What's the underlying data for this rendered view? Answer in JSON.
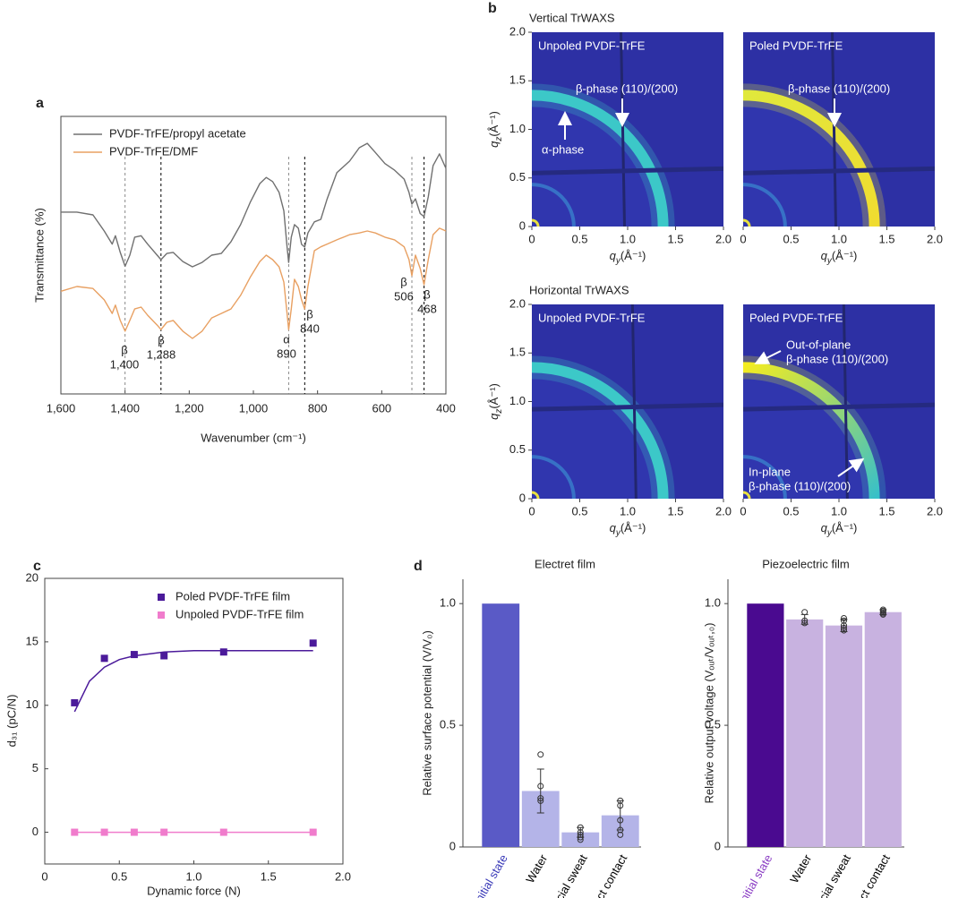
{
  "panel_labels": [
    "a",
    "b",
    "c",
    "d"
  ],
  "chart_data": [
    {
      "type": "line",
      "xlabel": "Wavenumber (cm⁻¹)",
      "ylabel": "Transmittance (%)",
      "xlim": [
        1600,
        400
      ],
      "ylim": [
        0,
        100
      ],
      "xticks": [
        {
          "value": 1600,
          "label": "1,600"
        },
        {
          "value": 1400,
          "label": "1,400"
        },
        {
          "value": 1200,
          "label": "1,200"
        },
        {
          "value": 1000,
          "label": "1,000"
        },
        800,
        600,
        400
      ],
      "legend": "upper left",
      "x": [
        1600,
        1550,
        1500,
        1465,
        1440,
        1430,
        1415,
        1400,
        1385,
        1370,
        1350,
        1330,
        1300,
        1288,
        1270,
        1250,
        1220,
        1190,
        1160,
        1130,
        1100,
        1070,
        1040,
        1010,
        980,
        960,
        940,
        920,
        905,
        895,
        890,
        882,
        872,
        860,
        850,
        840,
        830,
        810,
        790,
        770,
        740,
        700,
        670,
        645,
        620,
        590,
        560,
        530,
        515,
        506,
        495,
        480,
        468,
        455,
        440,
        420,
        400
      ],
      "series": [
        {
          "name": "PVDF-TrFE/propyl acetate",
          "color": "#707070",
          "values": [
            65.5,
            65.5,
            64.5,
            58.7,
            54,
            57,
            51,
            46,
            50,
            56.5,
            57,
            54,
            50,
            48.4,
            50.6,
            51,
            47.7,
            45.8,
            47.4,
            50,
            50.6,
            54.8,
            61,
            69,
            75.8,
            78,
            76.5,
            72.6,
            66,
            53,
            47.4,
            56.5,
            61,
            59.7,
            53.9,
            52.9,
            58,
            62,
            62.9,
            70.3,
            79.7,
            83.9,
            88.7,
            90.3,
            87,
            83,
            80.6,
            77.4,
            72.6,
            68.4,
            70.3,
            65,
            63.9,
            71,
            82.3,
            86.5,
            81.3
          ]
        },
        {
          "name": "PVDF-TrFE/DMF",
          "color": "#e8a062",
          "values": [
            37,
            38.7,
            38,
            33.9,
            29,
            32,
            26.5,
            22.6,
            26.5,
            30.6,
            31.3,
            28.4,
            24.8,
            23.2,
            25.8,
            26.5,
            22.6,
            20,
            22.6,
            27.4,
            29,
            30.6,
            35.5,
            42,
            47.7,
            50,
            48.4,
            45.8,
            40.3,
            29,
            23.2,
            30.6,
            41.3,
            38.7,
            33.9,
            30.6,
            38.7,
            51.6,
            53,
            54,
            55.5,
            57.4,
            58,
            58.7,
            58,
            56.5,
            55.5,
            53,
            48.4,
            42.6,
            50,
            45.2,
            39.4,
            48.4,
            57.4,
            59.7,
            58.7
          ]
        }
      ],
      "annotations": [
        {
          "x": 1400,
          "symbol": "β",
          "label": "1,400",
          "color": "#888888"
        },
        {
          "x": 1288,
          "symbol": "β",
          "label": "1,288",
          "color": "#000000"
        },
        {
          "x": 890,
          "symbol": "α",
          "label": "890",
          "color": "#888888"
        },
        {
          "x": 840,
          "symbol": "β",
          "label": "840",
          "color": "#000000"
        },
        {
          "x": 506,
          "symbol": "β",
          "label": "506",
          "color": "#888888"
        },
        {
          "x": 468,
          "symbol": "β",
          "label": "468",
          "color": "#000000"
        }
      ]
    },
    {
      "type": "image",
      "xlabel": {
        "symbol": "q",
        "sub": "y",
        "unit": "(Å⁻¹)"
      },
      "ylabel": {
        "symbol": "q",
        "sub": "z",
        "unit": "(Å⁻¹)"
      },
      "xlim": [
        0,
        2
      ],
      "ylim": [
        0,
        2
      ],
      "xticks": [
        0,
        0.5,
        {
          "value": 1,
          "label": "1.0"
        },
        1.5,
        {
          "value": 2,
          "label": "2.0"
        }
      ],
      "yticks": [
        0,
        0.5,
        {
          "value": 1,
          "label": "1.0"
        },
        1.5,
        {
          "value": 2,
          "label": "2.0"
        }
      ],
      "rows": [
        {
          "title": "Vertical TrWAXS",
          "images": [
            {
              "label": "Unpoled PVDF-TrFE",
              "ring_q": 1.37,
              "ring_colors": [
                "#3cc8c8",
                "#3cc8c8"
              ],
              "annotations": [
                {
                  "text": [
                    "β-phase (110)/(200)"
                  ]
                },
                {
                  "text": [
                    "α-phase"
                  ]
                }
              ]
            },
            {
              "label": "Poled PVDF-TrFE",
              "ring_q": 1.37,
              "ring_colors": [
                "#e0e83c",
                "#f0dc30"
              ],
              "annotations": [
                {
                  "text": [
                    "β-phase (110)/(200)"
                  ]
                }
              ]
            }
          ]
        },
        {
          "title": "Horizontal TrWAXS",
          "images": [
            {
              "label": "Unpoled PVDF-TrFE",
              "ring_q": 1.37,
              "ring_colors": [
                "#3cc8c8",
                "#3cc8c8"
              ],
              "annotations": []
            },
            {
              "label": "Poled PVDF-TrFE",
              "ring_q": 1.37,
              "ring_colors": [
                "#f4ec20",
                "#38c0c8"
              ],
              "annotations": [
                {
                  "text": [
                    "Out-of-plane",
                    "β-phase (110)/(200)"
                  ]
                },
                {
                  "text": [
                    "In-plane",
                    "β-phase (110)/(200)"
                  ]
                }
              ]
            }
          ]
        }
      ]
    },
    {
      "type": "scatter",
      "xlabel": "Dynamic force (N)",
      "ylabel": "d₃₁ (pC/N)",
      "xlim": [
        0,
        2
      ],
      "ylim": [
        -2.5,
        20
      ],
      "xticks": [
        0,
        0.5,
        {
          "value": 1,
          "label": "1.0"
        },
        1.5,
        {
          "value": 2,
          "label": "2.0"
        }
      ],
      "yticks": [
        0,
        5,
        10,
        15,
        20
      ],
      "x": [
        0.2,
        0.4,
        0.6,
        0.8,
        1.2,
        1.8
      ],
      "series": [
        {
          "name": "Poled PVDF-TrFE film",
          "color": "#4b1a9a",
          "values": [
            10.2,
            13.7,
            14.0,
            13.9,
            14.2,
            14.9
          ],
          "fit_x": [
            0.2,
            0.3,
            0.4,
            0.5,
            0.6,
            0.8,
            1.0,
            1.2,
            1.5,
            1.8
          ],
          "fit_values": [
            9.5,
            11.9,
            13.0,
            13.6,
            13.9,
            14.2,
            14.3,
            14.3,
            14.3,
            14.3
          ]
        },
        {
          "name": "Unpoled PVDF-TrFE film",
          "color": "#f07ccc",
          "values": [
            0,
            0,
            0,
            0,
            0,
            0
          ]
        }
      ]
    },
    {
      "type": "bar",
      "title": "Electret film",
      "ylabel": "Relative surface potential (V/V₀)",
      "ylim": [
        0,
        1.1
      ],
      "yticks": [
        0,
        0.5,
        {
          "value": 1,
          "label": "1.0"
        }
      ],
      "categories": [
        "Initial state",
        "Water",
        "Artificial sweat",
        "Direct contact"
      ],
      "values": [
        1.0,
        0.23,
        0.06,
        0.13
      ],
      "errors": [
        0,
        0.09,
        0.02,
        0.06
      ],
      "points": [
        [],
        [
          0.38,
          0.25,
          0.2,
          0.19
        ],
        [
          0.08,
          0.06,
          0.05,
          0.04,
          0.03
        ],
        [
          0.19,
          0.17,
          0.11,
          0.07,
          0.05
        ]
      ],
      "colors": [
        "#5a5ac6",
        "#b4b4e8",
        "#b4b4e8",
        "#b4b4e8"
      ],
      "label_colors": [
        "#3a3ab8",
        "#000000",
        "#000000",
        "#000000"
      ]
    },
    {
      "type": "bar",
      "title": "Piezoelectric film",
      "ylabel": "Relative output voltage (Vₒᵤₜ/Vₒᵤₜ,₀)",
      "ylim": [
        0,
        1.1
      ],
      "yticks": [
        0,
        0.5,
        {
          "value": 1,
          "label": "1.0"
        }
      ],
      "categories": [
        "Initial state",
        "Water",
        "Artificial sweat",
        "Direct contact"
      ],
      "values": [
        1.0,
        0.935,
        0.91,
        0.965
      ],
      "errors": [
        0,
        0.02,
        0.025,
        0.01
      ],
      "points": [
        [],
        [
          0.965,
          0.93,
          0.92
        ],
        [
          0.94,
          0.93,
          0.91,
          0.9,
          0.89
        ],
        [
          0.975,
          0.97,
          0.965,
          0.96,
          0.955
        ]
      ],
      "colors": [
        "#4a0a90",
        "#c8b2e0",
        "#c8b2e0",
        "#c8b2e0"
      ],
      "label_colors": [
        "#8a3cc4",
        "#000000",
        "#000000",
        "#000000"
      ]
    }
  ]
}
